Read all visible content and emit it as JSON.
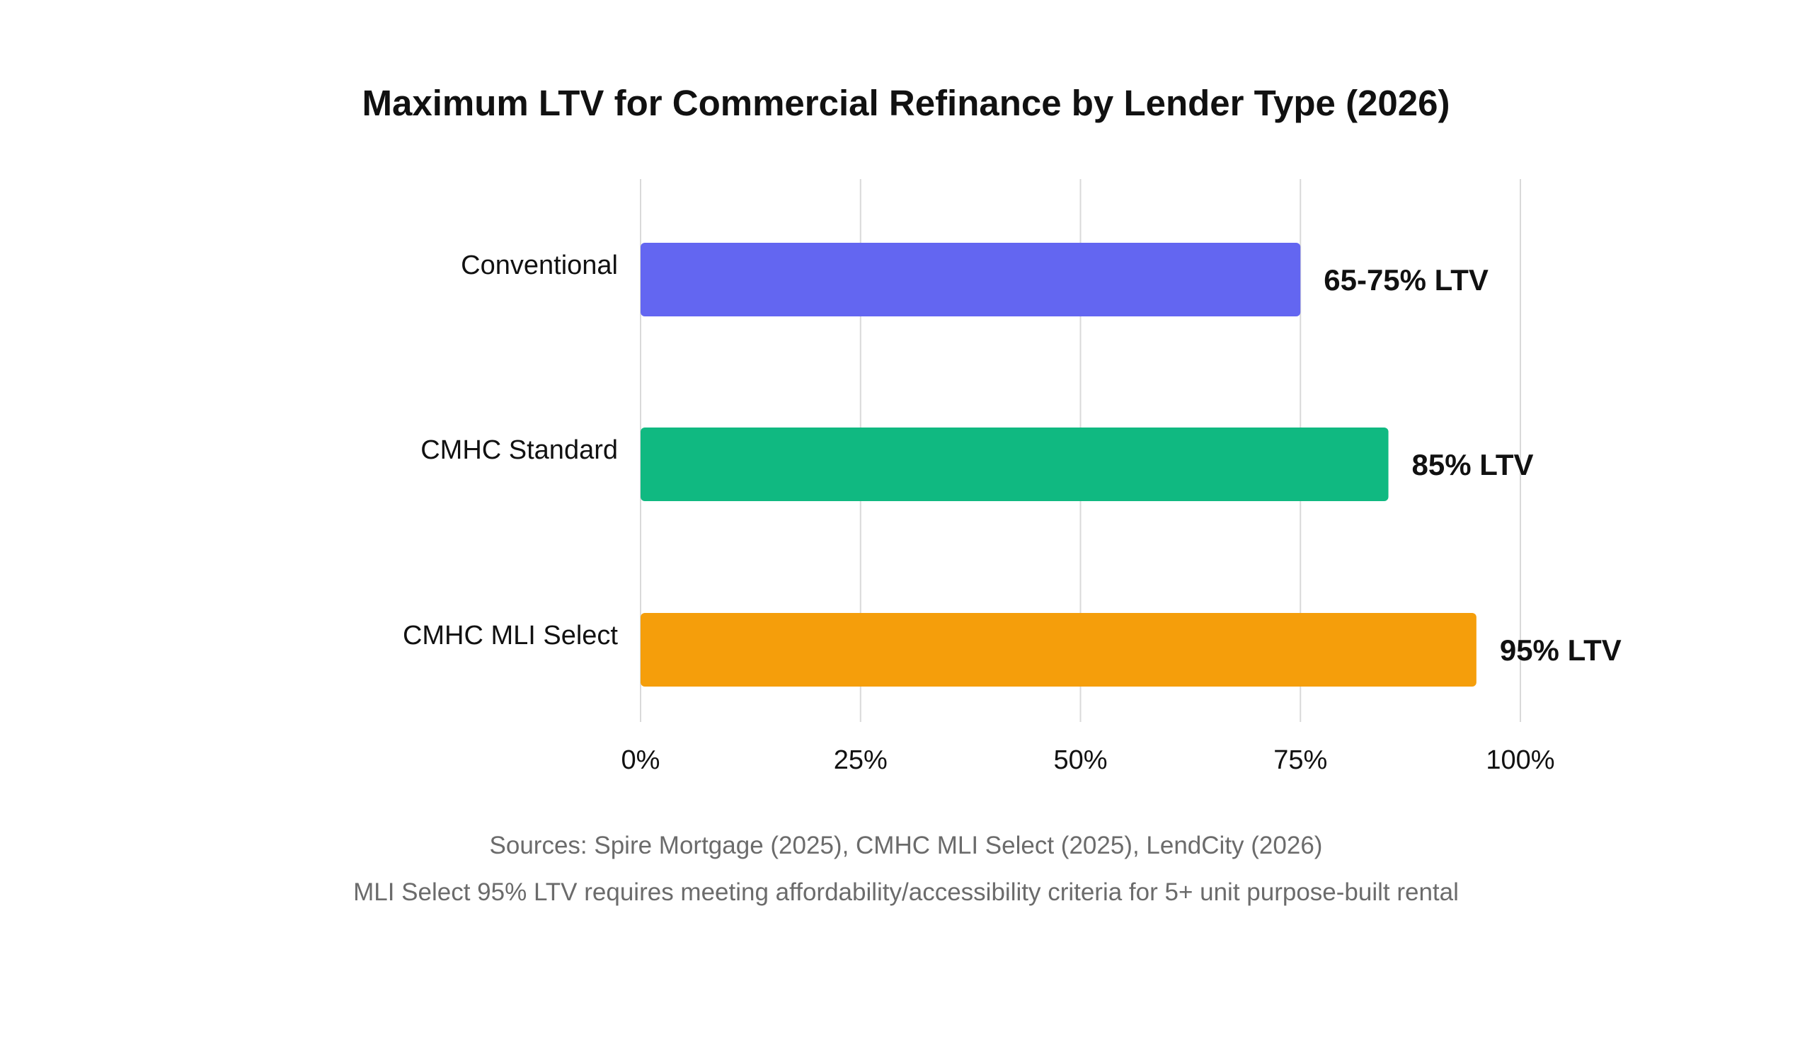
{
  "chart_data": {
    "type": "bar",
    "orientation": "horizontal",
    "title": "Maximum LTV for Commercial Refinance by Lender Type (2026)",
    "xlabel": "",
    "ylabel": "",
    "categories": [
      "Conventional",
      "CMHC Standard",
      "CMHC MLI Select"
    ],
    "values": [
      75,
      85,
      95
    ],
    "value_labels": [
      "65-75% LTV",
      "85% LTV",
      "95% LTV"
    ],
    "colors": [
      "#6366f1",
      "#10b981",
      "#f59e0b"
    ],
    "xlim": [
      0,
      100
    ],
    "x_ticks": [
      0,
      25,
      50,
      75,
      100
    ],
    "x_tick_labels": [
      "0%",
      "25%",
      "50%",
      "75%",
      "100%"
    ],
    "grid": "vertical",
    "legend": "none"
  },
  "footer": {
    "sources": "Sources: Spire Mortgage (2025), CMHC MLI Select (2025), LendCity (2026)",
    "note": "MLI Select 95% LTV requires meeting affordability/accessibility criteria for 5+ unit purpose-built rental"
  }
}
